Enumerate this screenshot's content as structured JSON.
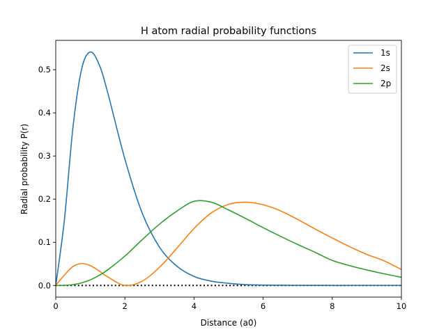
{
  "chart_data": {
    "type": "line",
    "title": "H atom radial probability functions",
    "xlabel": "Distance (a0)",
    "ylabel": "Radial probability P(r)",
    "xlim": [
      0,
      10
    ],
    "ylim": [
      -0.027,
      0.568
    ],
    "xticks": [
      0,
      2,
      4,
      6,
      8,
      10
    ],
    "xtick_labels": [
      "0",
      "2",
      "4",
      "6",
      "8",
      "10"
    ],
    "yticks": [
      0.0,
      0.1,
      0.2,
      0.3,
      0.4,
      0.5
    ],
    "ytick_labels": [
      "0.0",
      "0.1",
      "0.2",
      "0.3",
      "0.4",
      "0.5"
    ],
    "grid": false,
    "legend_position": "top-right",
    "baseline": {
      "y": 0,
      "style": "dotted",
      "color": "#000000"
    },
    "x": [
      0,
      0.25,
      0.5,
      0.75,
      1,
      1.25,
      1.5,
      2,
      2.5,
      3,
      3.5,
      4,
      4.5,
      5,
      5.5,
      6,
      6.5,
      7,
      7.5,
      8,
      8.5,
      9,
      9.5,
      10
    ],
    "series": [
      {
        "name": "1s",
        "color": "#1f77b4",
        "values": [
          0,
          0.152,
          0.368,
          0.502,
          0.541,
          0.513,
          0.448,
          0.293,
          0.168,
          0.089,
          0.045,
          0.021,
          0.01,
          0.005,
          0.002,
          0.001,
          0.0005,
          0.0002,
          0.0001,
          0,
          0,
          0,
          0,
          0
        ]
      },
      {
        "name": "2s",
        "color": "#ff7f0e",
        "values": [
          0,
          0.024,
          0.044,
          0.051,
          0.046,
          0.034,
          0.02,
          0,
          0.01,
          0.042,
          0.086,
          0.132,
          0.168,
          0.188,
          0.193,
          0.187,
          0.173,
          0.153,
          0.131,
          0.11,
          0.09,
          0.072,
          0.057,
          0.037
        ]
      },
      {
        "name": "2p",
        "color": "#2ca02c",
        "values": [
          0,
          0.0002,
          0.002,
          0.006,
          0.013,
          0.023,
          0.036,
          0.068,
          0.106,
          0.142,
          0.172,
          0.195,
          0.193,
          0.175,
          0.155,
          0.134,
          0.114,
          0.095,
          0.077,
          0.058,
          0.046,
          0.036,
          0.027,
          0.019
        ]
      }
    ]
  }
}
